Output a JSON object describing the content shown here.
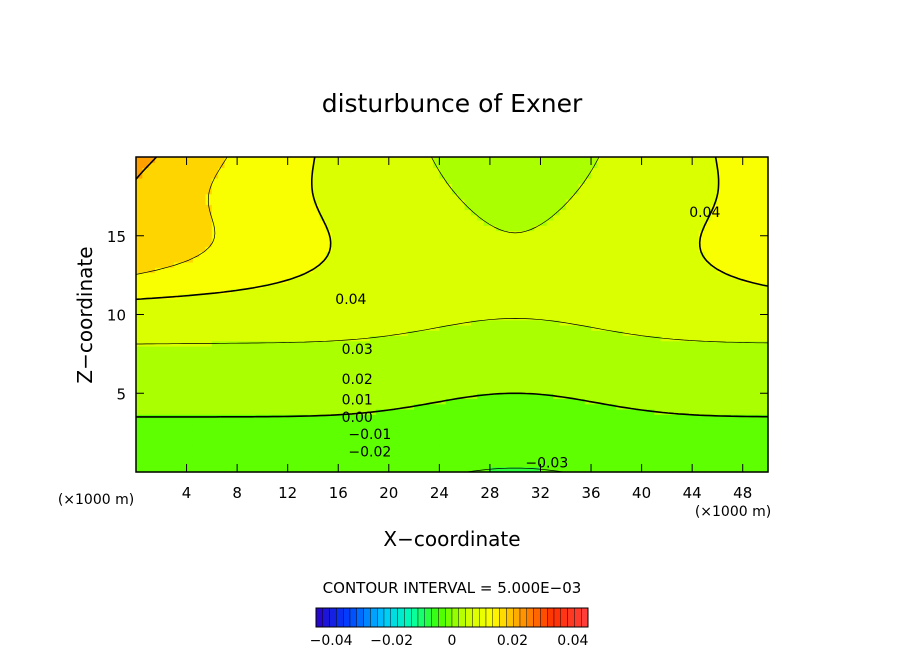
{
  "chart_data": {
    "type": "heatmap",
    "title": "disturbunce of Exner",
    "xlabel": "X−coordinate",
    "ylabel": "Z−coordinate",
    "x_unit_label": "(×1000 m)",
    "y_unit_label": "(×1000 m)",
    "xlim": [
      0,
      50
    ],
    "ylim": [
      0,
      20
    ],
    "x_ticks": [
      4,
      8,
      12,
      16,
      20,
      24,
      28,
      32,
      36,
      40,
      44,
      48
    ],
    "y_ticks": [
      5,
      10,
      15
    ],
    "contour_interval_label": "CONTOUR INTERVAL = 5.000E−03",
    "contour_interval": 0.005,
    "value_range": [
      -0.045,
      0.045
    ],
    "colorscale": "rainbow",
    "negative_contours": "dashed",
    "contour_labels": [
      {
        "text": "0.04",
        "x": 17,
        "z": 11.0
      },
      {
        "text": "0.04",
        "x": 45,
        "z": 16.5
      },
      {
        "text": "0.03",
        "x": 17.5,
        "z": 7.8
      },
      {
        "text": "0.02",
        "x": 17.5,
        "z": 5.9
      },
      {
        "text": "0.01",
        "x": 17.5,
        "z": 4.6
      },
      {
        "text": "0.00",
        "x": 17.5,
        "z": 3.5
      },
      {
        "text": "−0.01",
        "x": 18.5,
        "z": 2.4
      },
      {
        "text": "−0.02",
        "x": 18.5,
        "z": 1.3
      },
      {
        "text": "−0.03",
        "x": 32.5,
        "z": 0.6
      }
    ],
    "colorbar": {
      "ticks": [
        -0.04,
        -0.02,
        0,
        0.02,
        0.04
      ],
      "tick_labels": [
        "−0.04",
        "−0.02",
        "0",
        "0.02",
        "0.04"
      ],
      "steps": 40
    }
  }
}
